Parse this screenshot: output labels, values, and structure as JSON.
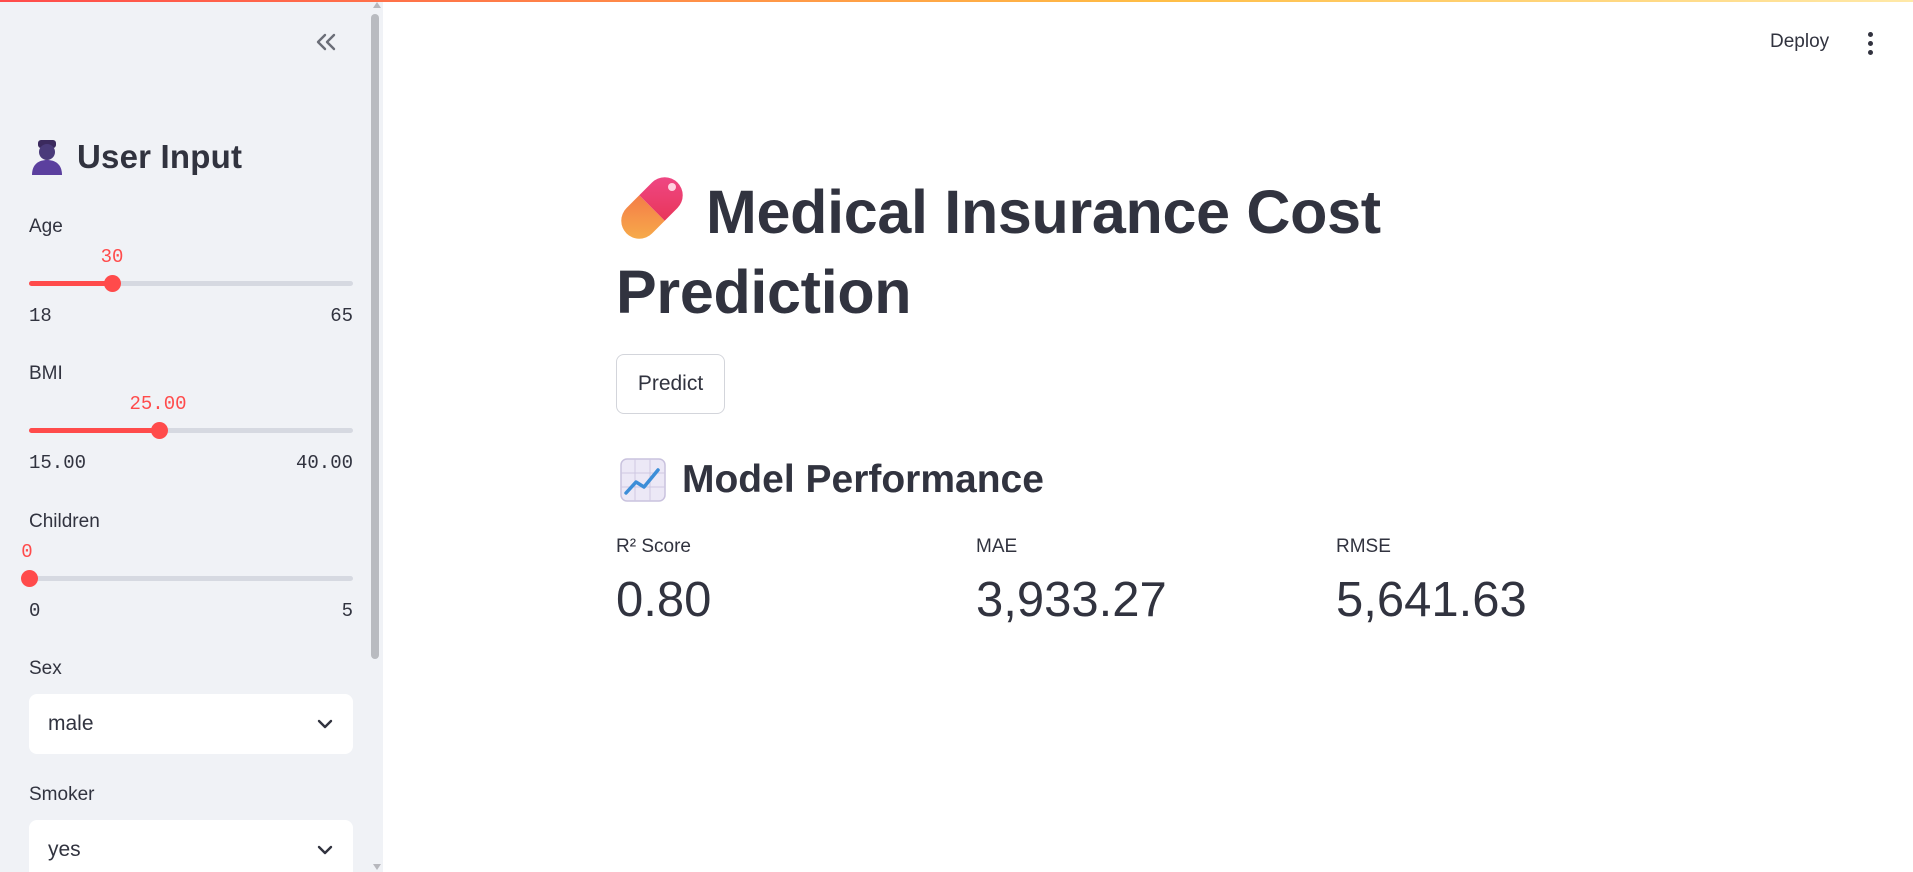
{
  "sidebar": {
    "header": {
      "title": "User Input",
      "icon": "person-icon"
    },
    "age": {
      "label": "Age",
      "value": "30",
      "min": "18",
      "max": "65",
      "fraction": 0.255
    },
    "bmi": {
      "label": "BMI",
      "value": "25.00",
      "min": "15.00",
      "max": "40.00",
      "fraction": 0.4
    },
    "children": {
      "label": "Children",
      "value": "0",
      "min": "0",
      "max": "5",
      "fraction": 0
    },
    "sex": {
      "label": "Sex",
      "selected": "male"
    },
    "smoker": {
      "label": "Smoker",
      "selected": "yes"
    }
  },
  "toolbar": {
    "deploy_label": "Deploy"
  },
  "main": {
    "title": "Medical Insurance Cost Prediction",
    "title_icon": "pill-icon",
    "predict_label": "Predict",
    "section": {
      "title": "Model Performance",
      "icon": "chart-increasing-icon"
    },
    "metrics": [
      {
        "label": "R² Score",
        "value": "0.80"
      },
      {
        "label": "MAE",
        "value": "3,933.27"
      },
      {
        "label": "RMSE",
        "value": "5,641.63"
      }
    ]
  },
  "colors": {
    "accent": "#ff4b4b",
    "sidebar_bg": "#f0f2f6",
    "text": "#31333f"
  }
}
